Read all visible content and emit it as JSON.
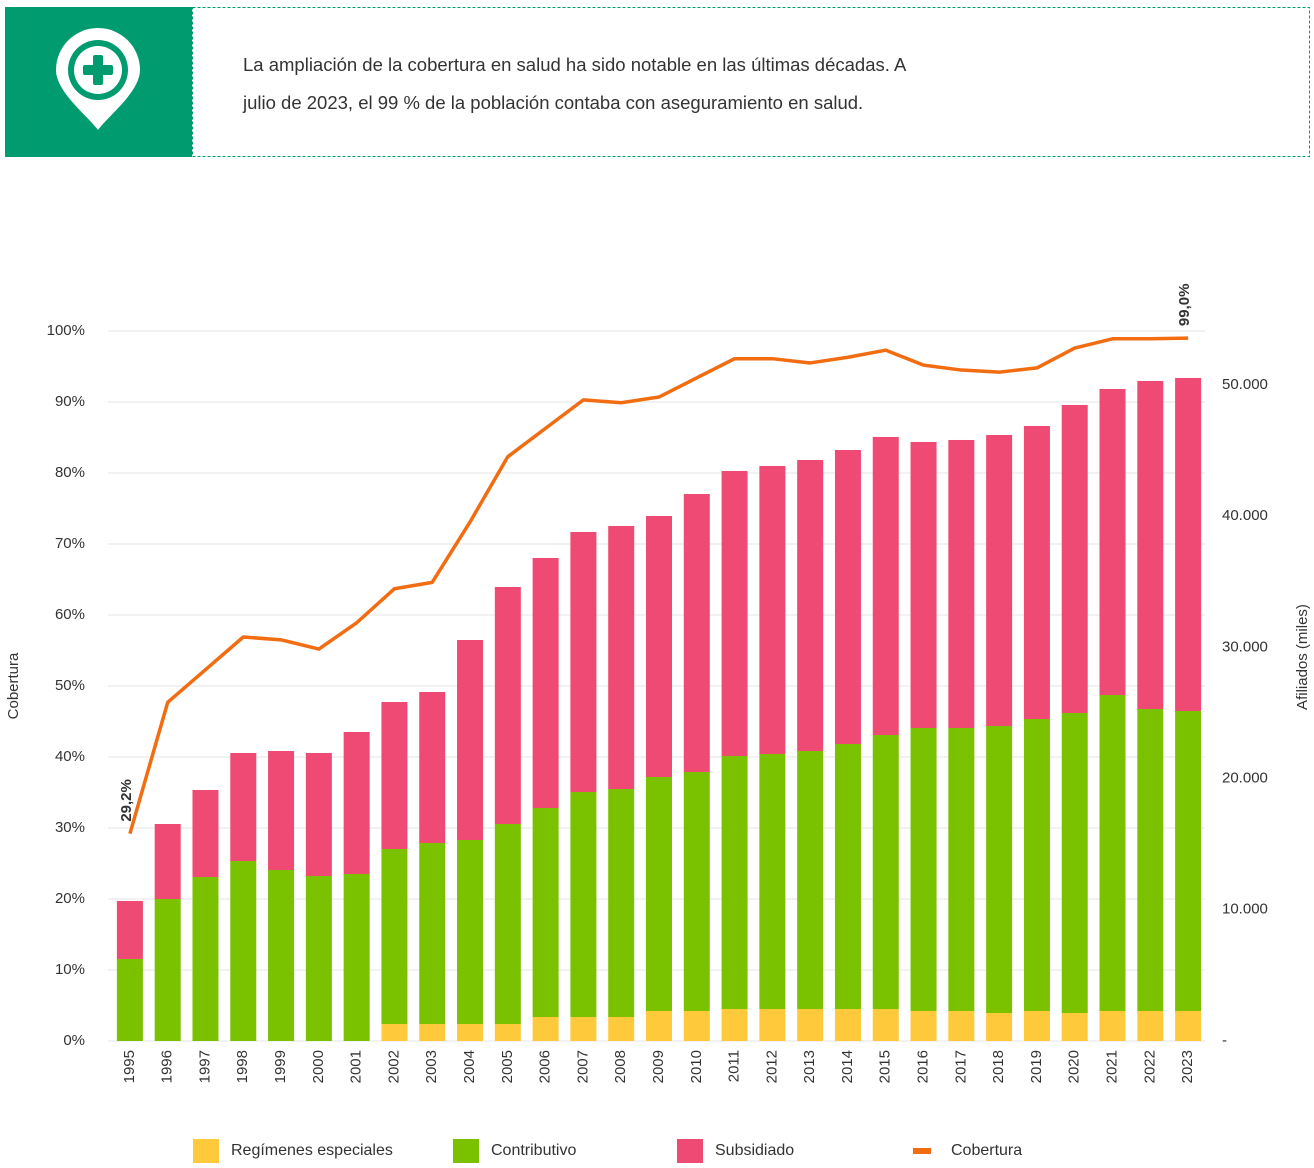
{
  "header": {
    "text_lines": [
      "La ampliación de la cobertura en salud ha sido notable en las últimas décadas. A",
      "julio de 2023, el 99 % de la población contaba con aseguramiento en salud."
    ]
  },
  "chart_data": {
    "type": "bar",
    "ylabel": "Cobertura",
    "y2label": "Afiliados (miles)",
    "categories": [
      "1995",
      "1996",
      "1997",
      "1998",
      "1999",
      "2000",
      "2001",
      "2002",
      "2003",
      "2004",
      "2005",
      "2006",
      "2007",
      "2008",
      "2009",
      "2010",
      "2011",
      "2012",
      "2013",
      "2014",
      "2015",
      "2016",
      "2017",
      "2018",
      "2019",
      "2020",
      "2021",
      "2022",
      "2023"
    ],
    "series": [
      {
        "name": "Regímenes especiales",
        "type": "bar",
        "axis": "y2",
        "color": "#ffc93c",
        "values": [
          0,
          0,
          0,
          0,
          0,
          0,
          0,
          1295,
          1295,
          1295,
          1295,
          1829,
          1829,
          1829,
          2286,
          2286,
          2438,
          2438,
          2438,
          2438,
          2438,
          2286,
          2286,
          2134,
          2286,
          2134,
          2286,
          2286,
          2286
        ]
      },
      {
        "name": "Contributivo",
        "type": "bar",
        "axis": "y2",
        "color": "#7ac100",
        "values": [
          6250,
          10820,
          12497,
          13716,
          13030,
          12573,
          12725,
          13335,
          13793,
          14021,
          15240,
          15926,
          17145,
          17373,
          17831,
          18212,
          19279,
          19431,
          19660,
          20193,
          20879,
          21565,
          21565,
          21869,
          22250,
          22860,
          24079,
          23012,
          22860
        ]
      },
      {
        "name": "Subsidiado",
        "type": "bar",
        "axis": "y2",
        "color": "#ee4a73",
        "values": [
          4420,
          5715,
          6629,
          8230,
          9068,
          9373,
          10821,
          11202,
          11506,
          15240,
          18060,
          19050,
          19812,
          20041,
          19888,
          21183,
          21717,
          21946,
          22174,
          22403,
          22708,
          21793,
          21945,
          22174,
          22327,
          23469,
          23317,
          24994,
          25375
        ]
      },
      {
        "name": "Cobertura",
        "type": "line",
        "color": "#f26c12",
        "values": [
          29.2,
          47.7,
          52.3,
          56.9,
          56.5,
          55.2,
          58.9,
          63.7,
          64.6,
          73.1,
          82.3,
          86.3,
          90.3,
          89.9,
          90.7,
          93.4,
          96.1,
          96.1,
          95.5,
          96.3,
          97.3,
          95.2,
          94.5,
          94.2,
          94.8,
          97.6,
          98.9,
          98.9,
          99.0
        ],
        "value_labels": [
          "29,2%",
          null,
          null,
          null,
          null,
          null,
          null,
          null,
          null,
          null,
          null,
          null,
          null,
          null,
          null,
          null,
          null,
          null,
          null,
          null,
          null,
          null,
          null,
          null,
          null,
          null,
          null,
          null,
          "99,0%"
        ]
      }
    ],
    "ylim": [
      0,
      100
    ],
    "yticks": [
      {
        "value": 0,
        "label": "0%"
      },
      {
        "value": 10,
        "label": "10%"
      },
      {
        "value": 20,
        "label": "20%"
      },
      {
        "value": 30,
        "label": "30%"
      },
      {
        "value": 40,
        "label": "40%"
      },
      {
        "value": 50,
        "label": "50%"
      },
      {
        "value": 60,
        "label": "60%"
      },
      {
        "value": 70,
        "label": "70%"
      },
      {
        "value": 80,
        "label": "80%"
      },
      {
        "value": 90,
        "label": "90%"
      },
      {
        "value": 100,
        "label": "100%"
      }
    ],
    "y2lim": [
      0,
      54100
    ],
    "y2ticks": [
      {
        "value": 0,
        "label": "-"
      },
      {
        "value": 10000,
        "label": "10.000"
      },
      {
        "value": 20000,
        "label": "20.000"
      },
      {
        "value": 30000,
        "label": "30.000"
      },
      {
        "value": 40000,
        "label": "40.000"
      },
      {
        "value": 50000,
        "label": "50.000"
      }
    ],
    "grid": true,
    "stacked": true,
    "legend": "bottom"
  }
}
